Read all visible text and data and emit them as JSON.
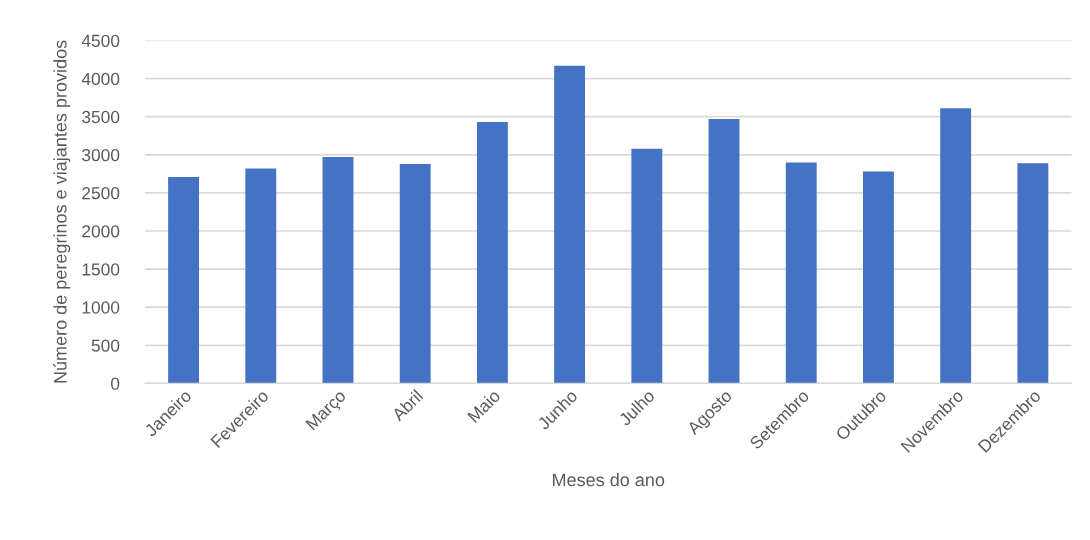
{
  "chart_data": {
    "type": "bar",
    "xlabel": "Meses do ano",
    "ylabel": "Número de peregrinos e viajantes providos",
    "categories": [
      "Janeiro",
      "Fevereiro",
      "Março",
      "Abril",
      "Maio",
      "Junho",
      "Julho",
      "Agosto",
      "Setembro",
      "Outubro",
      "Novembro",
      "Dezembro"
    ],
    "values": [
      2710,
      2820,
      2970,
      2880,
      3430,
      4170,
      3080,
      3470,
      2900,
      2780,
      3610,
      2890
    ],
    "color": "#4472c4",
    "ylim": [
      0,
      4500
    ],
    "yticks": [
      0,
      500,
      1000,
      1500,
      2000,
      2500,
      3000,
      3500,
      4000,
      4500
    ],
    "grid": "y"
  }
}
